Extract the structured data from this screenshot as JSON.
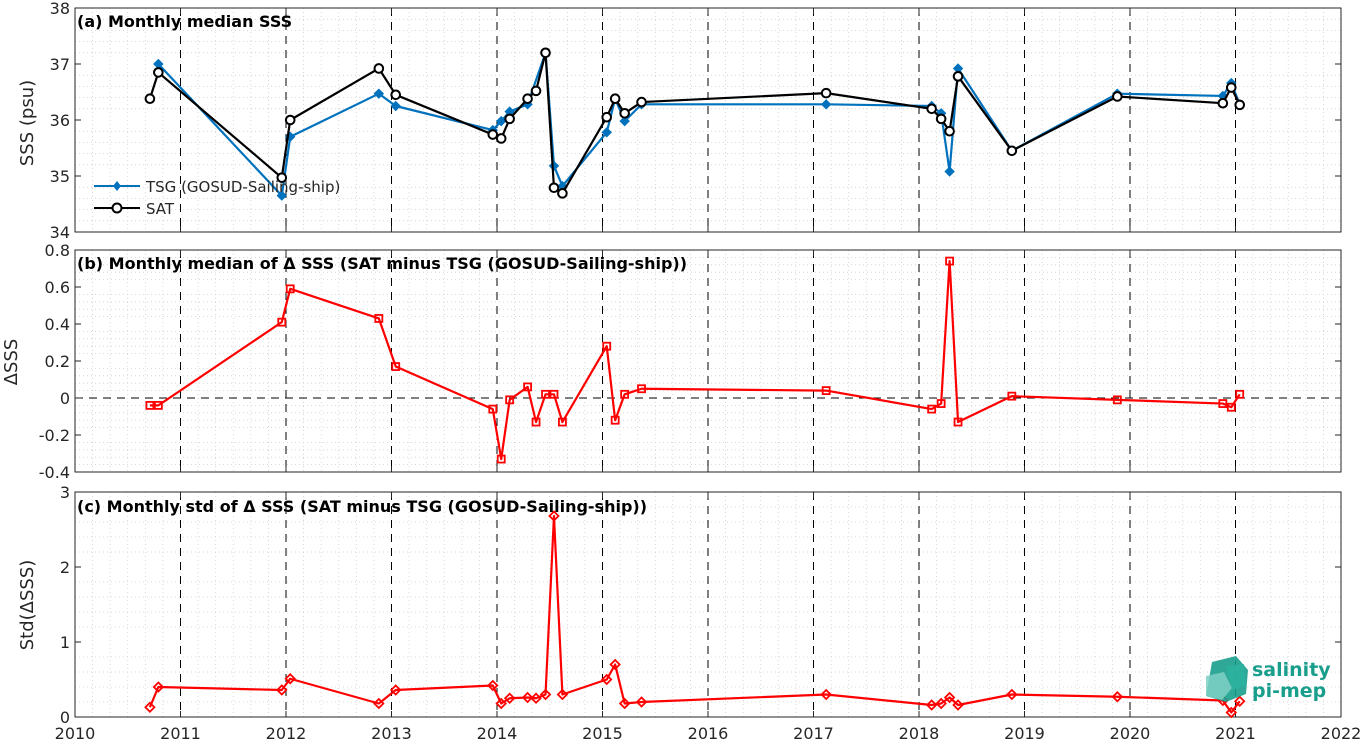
{
  "chart_data": [
    {
      "type": "line",
      "title": "(a) Monthly median SSS",
      "ylabel": "SSS (psu)",
      "xlim": [
        2010,
        2022
      ],
      "ylim": [
        34,
        38
      ],
      "yticks": [
        34,
        35,
        36,
        37,
        38
      ],
      "grid": true,
      "legend_position": "bottom-left",
      "series": [
        {
          "name": "TSG (GOSUD-Sailing-ship)",
          "color": "#0072BD",
          "marker": "diamond",
          "x": [
            2010.79,
            2011.96,
            2012.04,
            2012.88,
            2013.04,
            2013.96,
            2014.04,
            2014.12,
            2014.29,
            2014.46,
            2014.54,
            2014.62,
            2015.04,
            2015.12,
            2015.21,
            2015.37,
            2017.12,
            2018.12,
            2018.21,
            2018.29,
            2018.37,
            2018.88,
            2019.88,
            2020.88,
            2020.96,
            2021.04
          ],
          "y": [
            37.0,
            34.65,
            35.7,
            36.47,
            36.25,
            35.82,
            35.98,
            36.15,
            36.28,
            37.2,
            35.18,
            34.82,
            35.78,
            36.38,
            35.98,
            36.28,
            36.28,
            36.25,
            36.12,
            35.08,
            36.92,
            35.45,
            36.47,
            36.43,
            36.66,
            36.28
          ]
        },
        {
          "name": "SAT",
          "color": "#000000",
          "marker": "circle",
          "x": [
            2010.71,
            2010.79,
            2011.96,
            2012.04,
            2012.88,
            2013.04,
            2013.96,
            2014.04,
            2014.12,
            2014.29,
            2014.37,
            2014.46,
            2014.54,
            2014.62,
            2015.04,
            2015.12,
            2015.21,
            2015.37,
            2017.12,
            2018.12,
            2018.21,
            2018.29,
            2018.37,
            2018.88,
            2019.88,
            2020.88,
            2020.96,
            2021.04
          ],
          "y": [
            36.38,
            36.85,
            34.97,
            36.0,
            36.92,
            36.45,
            35.74,
            35.67,
            36.02,
            36.38,
            36.52,
            37.2,
            34.79,
            34.69,
            36.05,
            36.38,
            36.12,
            36.32,
            36.48,
            36.2,
            36.02,
            35.8,
            36.78,
            35.45,
            36.42,
            36.3,
            36.58,
            36.27
          ]
        }
      ]
    },
    {
      "type": "line",
      "title": "(b) Monthly median of Δ SSS (SAT minus TSG (GOSUD-Sailing-ship))",
      "ylabel": "ΔSSS",
      "xlim": [
        2010,
        2022
      ],
      "ylim": [
        -0.4,
        0.8
      ],
      "yticks": [
        -0.4,
        -0.2,
        0,
        0.2,
        0.4,
        0.6,
        0.8
      ],
      "ytick_labels": [
        "-0.4",
        "-0.2",
        "0",
        "0.2",
        "0.4",
        "0.6",
        "0.8"
      ],
      "grid": true,
      "zero_line": true,
      "series": [
        {
          "color": "#FF0000",
          "marker": "square",
          "x": [
            2010.71,
            2010.79,
            2011.96,
            2012.04,
            2012.88,
            2013.04,
            2013.96,
            2014.04,
            2014.12,
            2014.29,
            2014.37,
            2014.46,
            2014.54,
            2014.62,
            2015.04,
            2015.12,
            2015.21,
            2015.37,
            2017.12,
            2018.12,
            2018.21,
            2018.29,
            2018.37,
            2018.88,
            2019.88,
            2020.88,
            2020.96,
            2021.04
          ],
          "y": [
            -0.04,
            -0.04,
            0.41,
            0.59,
            0.43,
            0.17,
            -0.06,
            -0.33,
            -0.01,
            0.06,
            -0.13,
            0.02,
            0.02,
            -0.13,
            0.28,
            -0.12,
            0.02,
            0.05,
            0.04,
            -0.06,
            -0.03,
            0.74,
            -0.13,
            0.01,
            -0.01,
            -0.03,
            -0.05,
            0.02
          ]
        }
      ]
    },
    {
      "type": "line",
      "title": "(c) Monthly std of Δ SSS (SAT minus TSG (GOSUD-Sailing-ship))",
      "ylabel": "Std(ΔSSS)",
      "xlabel": "",
      "xlim": [
        2010,
        2022
      ],
      "ylim": [
        0,
        3
      ],
      "yticks": [
        0,
        1,
        2,
        3
      ],
      "xticks": [
        2010,
        2011,
        2012,
        2013,
        2014,
        2015,
        2016,
        2017,
        2018,
        2019,
        2020,
        2021,
        2022
      ],
      "grid": true,
      "series": [
        {
          "color": "#FF0000",
          "marker": "diamond",
          "x": [
            2010.71,
            2010.79,
            2011.96,
            2012.04,
            2012.88,
            2013.04,
            2013.96,
            2014.04,
            2014.12,
            2014.29,
            2014.37,
            2014.46,
            2014.54,
            2014.62,
            2015.04,
            2015.12,
            2015.21,
            2015.37,
            2017.12,
            2018.12,
            2018.21,
            2018.29,
            2018.37,
            2018.88,
            2019.88,
            2020.88,
            2020.96,
            2021.04
          ],
          "y": [
            0.13,
            0.4,
            0.36,
            0.51,
            0.18,
            0.36,
            0.42,
            0.18,
            0.25,
            0.26,
            0.25,
            0.3,
            2.68,
            0.3,
            0.5,
            0.7,
            0.18,
            0.2,
            0.3,
            0.16,
            0.18,
            0.26,
            0.16,
            0.3,
            0.27,
            0.22,
            0.06,
            0.21
          ]
        }
      ]
    }
  ],
  "logo": {
    "line1": "salinity",
    "line2": "pi-mep",
    "color": "#1a9e8c"
  }
}
